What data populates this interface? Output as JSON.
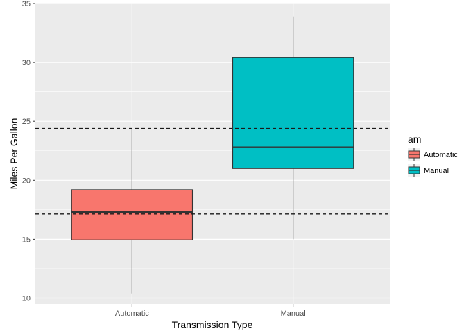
{
  "chart_data": {
    "type": "box",
    "xlabel": "Transmission Type",
    "ylabel": "Miles Per Gallon",
    "ylim": [
      9.5,
      35
    ],
    "y_ticks": [
      10,
      15,
      20,
      25,
      30,
      35
    ],
    "y_tick_labels": [
      "10",
      "15",
      "20",
      "25",
      "30",
      "35"
    ],
    "categories": [
      "Automatic",
      "Manual"
    ],
    "boxes": [
      {
        "category": "Automatic",
        "min": 10.4,
        "q1": 14.95,
        "median": 17.3,
        "q3": 19.2,
        "max": 24.4,
        "color": "#F8766D"
      },
      {
        "category": "Manual",
        "min": 15.0,
        "q1": 21.0,
        "median": 22.8,
        "q3": 30.4,
        "max": 33.9,
        "color": "#00BFC4"
      }
    ],
    "reference_lines": [
      {
        "y": 24.39,
        "style": "dashed"
      },
      {
        "y": 17.15,
        "style": "dashed"
      }
    ],
    "grid": true,
    "legend": {
      "title": "am",
      "placement": "right",
      "entries": [
        {
          "label": "Automatic",
          "color": "#F8766D"
        },
        {
          "label": "Manual",
          "color": "#00BFC4"
        }
      ]
    }
  }
}
